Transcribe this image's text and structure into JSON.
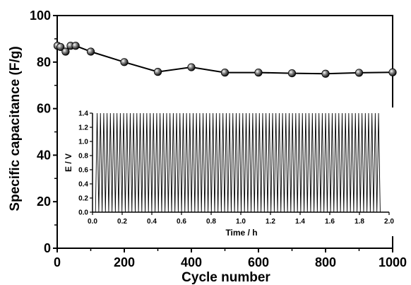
{
  "chart_data": [
    {
      "type": "line",
      "title": "",
      "xlabel": "Cycle number",
      "ylabel": "Specific capacitance (F/g)",
      "xlim": [
        0,
        1000
      ],
      "ylim": [
        0,
        100
      ],
      "xticks": [
        0,
        200,
        400,
        600,
        800,
        1000
      ],
      "yticks": [
        0,
        20,
        40,
        60,
        80,
        100
      ],
      "marker": "sphere",
      "line_color": "#000000",
      "series": [
        {
          "x": [
            1,
            10,
            25,
            40,
            55,
            100,
            200,
            300,
            400,
            500,
            600,
            700,
            800,
            900,
            1000
          ],
          "y": [
            87,
            86.5,
            84.5,
            87,
            87,
            84.5,
            80,
            75.8,
            77.8,
            75.5,
            75.5,
            75.2,
            75,
            75.4,
            75.6
          ]
        }
      ]
    },
    {
      "type": "line",
      "title": "",
      "xlabel": "Time / h",
      "ylabel": "E / V",
      "xlim": [
        0,
        2.0
      ],
      "ylim": [
        0,
        1.4
      ],
      "xticks": [
        "0.0",
        "0.2",
        "0.4",
        "0.6",
        "0.8",
        "1.0",
        "1.2",
        "1.4",
        "1.6",
        "1.8",
        "2.0"
      ],
      "yticks": [
        "0.0",
        "0.2",
        "0.4",
        "0.6",
        "0.8",
        "1.0",
        "1.2",
        "1.4"
      ],
      "waveform": {
        "shape": "triangular",
        "v_min": 0.0,
        "v_max": 1.4,
        "t_start": 0.02,
        "t_end": 1.94,
        "cycles": 86
      },
      "line_color": "#000000"
    }
  ]
}
